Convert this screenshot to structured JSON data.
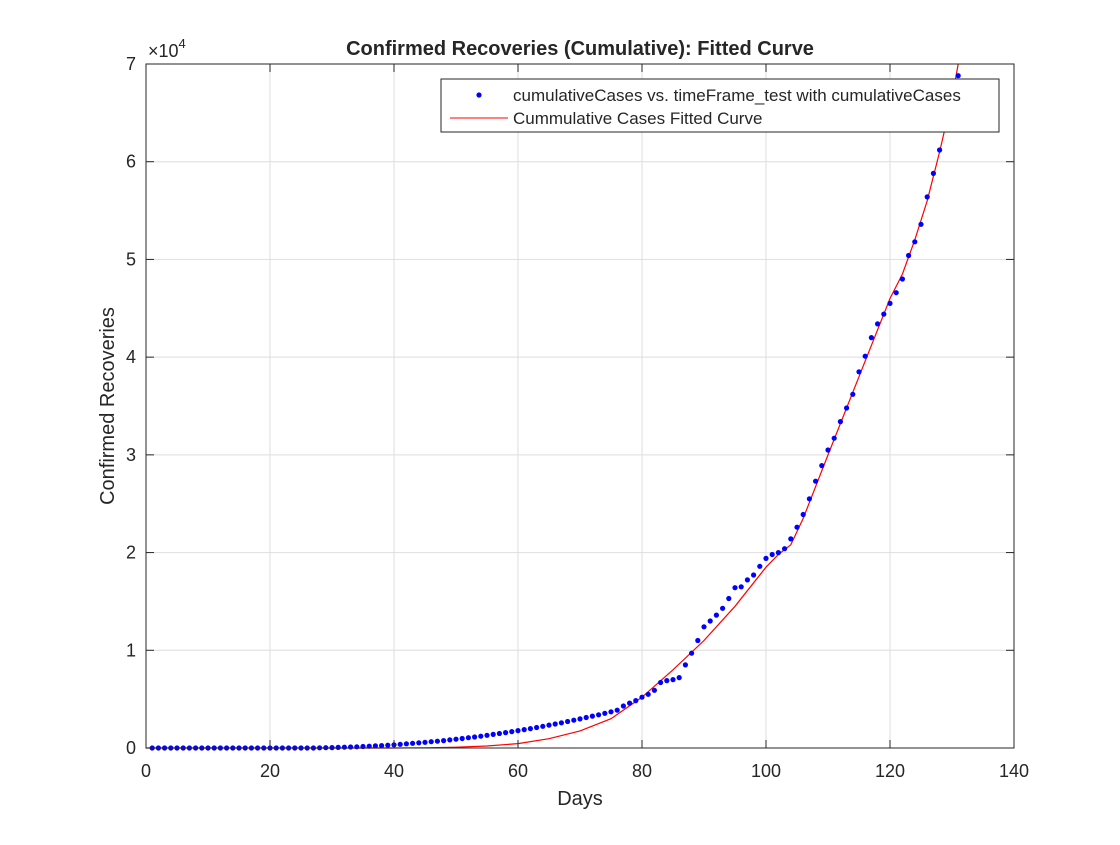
{
  "chart_data": {
    "type": "scatter",
    "title": "Confirmed Recoveries (Cumulative): Fitted Curve",
    "xlabel": "Days",
    "ylabel": "Confirmed Recoveries",
    "xlim": [
      0,
      140
    ],
    "ylim": [
      0,
      70000
    ],
    "x_ticks": [
      0,
      20,
      40,
      60,
      80,
      100,
      120,
      140
    ],
    "y_ticks": [
      0,
      1,
      2,
      3,
      4,
      5,
      6,
      7
    ],
    "y_multiplier": "×10",
    "y_multiplier_exp": "4",
    "grid": true,
    "legend_position": "top-right",
    "colors": {
      "points": "#0000ff",
      "fit": "#ff0000",
      "grid": "#dedede",
      "axes": "#262626"
    },
    "series": [
      {
        "name": "cumulativeCases vs. timeFrame_test with cumulativeCases",
        "kind": "points",
        "data": [
          [
            1,
            0
          ],
          [
            2,
            0
          ],
          [
            3,
            0
          ],
          [
            4,
            0
          ],
          [
            5,
            0
          ],
          [
            6,
            0
          ],
          [
            7,
            0
          ],
          [
            8,
            0
          ],
          [
            9,
            0
          ],
          [
            10,
            0
          ],
          [
            11,
            0
          ],
          [
            12,
            0
          ],
          [
            13,
            0
          ],
          [
            14,
            0
          ],
          [
            15,
            0
          ],
          [
            16,
            0
          ],
          [
            17,
            0
          ],
          [
            18,
            0
          ],
          [
            19,
            0
          ],
          [
            20,
            0
          ],
          [
            21,
            0
          ],
          [
            22,
            0
          ],
          [
            23,
            0
          ],
          [
            24,
            0
          ],
          [
            25,
            0
          ],
          [
            26,
            0
          ],
          [
            27,
            0
          ],
          [
            28,
            20
          ],
          [
            29,
            30
          ],
          [
            30,
            40
          ],
          [
            31,
            60
          ],
          [
            32,
            80
          ],
          [
            33,
            100
          ],
          [
            34,
            120
          ],
          [
            35,
            150
          ],
          [
            36,
            180
          ],
          [
            37,
            210
          ],
          [
            38,
            250
          ],
          [
            39,
            290
          ],
          [
            40,
            330
          ],
          [
            41,
            380
          ],
          [
            42,
            430
          ],
          [
            43,
            480
          ],
          [
            44,
            530
          ],
          [
            45,
            580
          ],
          [
            46,
            640
          ],
          [
            47,
            700
          ],
          [
            48,
            760
          ],
          [
            49,
            830
          ],
          [
            50,
            900
          ],
          [
            51,
            970
          ],
          [
            52,
            1050
          ],
          [
            53,
            1130
          ],
          [
            54,
            1210
          ],
          [
            55,
            1300
          ],
          [
            56,
            1390
          ],
          [
            57,
            1480
          ],
          [
            58,
            1580
          ],
          [
            59,
            1680
          ],
          [
            60,
            1780
          ],
          [
            61,
            1880
          ],
          [
            62,
            1990
          ],
          [
            63,
            2100
          ],
          [
            64,
            2220
          ],
          [
            65,
            2340
          ],
          [
            66,
            2460
          ],
          [
            67,
            2580
          ],
          [
            68,
            2710
          ],
          [
            69,
            2840
          ],
          [
            70,
            2980
          ],
          [
            71,
            3120
          ],
          [
            72,
            3260
          ],
          [
            73,
            3400
          ],
          [
            74,
            3550
          ],
          [
            75,
            3700
          ],
          [
            76,
            3870
          ],
          [
            77,
            4300
          ],
          [
            78,
            4600
          ],
          [
            79,
            4850
          ],
          [
            80,
            5200
          ],
          [
            81,
            5500
          ],
          [
            82,
            5900
          ],
          [
            83,
            6700
          ],
          [
            84,
            6900
          ],
          [
            85,
            7000
          ],
          [
            86,
            7200
          ],
          [
            87,
            8500
          ],
          [
            88,
            9700
          ],
          [
            89,
            11000
          ],
          [
            90,
            12400
          ],
          [
            91,
            13000
          ],
          [
            92,
            13600
          ],
          [
            93,
            14300
          ],
          [
            94,
            15300
          ],
          [
            95,
            16400
          ],
          [
            96,
            16500
          ],
          [
            97,
            17200
          ],
          [
            98,
            17700
          ],
          [
            99,
            18600
          ],
          [
            100,
            19400
          ],
          [
            101,
            19800
          ],
          [
            102,
            20000
          ],
          [
            103,
            20400
          ],
          [
            104,
            21400
          ],
          [
            105,
            22600
          ],
          [
            106,
            23900
          ],
          [
            107,
            25500
          ],
          [
            108,
            27300
          ],
          [
            109,
            28900
          ],
          [
            110,
            30500
          ],
          [
            111,
            31700
          ],
          [
            112,
            33400
          ],
          [
            113,
            34800
          ],
          [
            114,
            36200
          ],
          [
            115,
            38500
          ],
          [
            116,
            40100
          ],
          [
            117,
            42000
          ],
          [
            118,
            43400
          ],
          [
            119,
            44400
          ],
          [
            120,
            45500
          ],
          [
            121,
            46600
          ],
          [
            122,
            48000
          ],
          [
            123,
            50400
          ],
          [
            124,
            51800
          ],
          [
            125,
            53600
          ],
          [
            126,
            56400
          ],
          [
            127,
            58800
          ],
          [
            128,
            61200
          ],
          [
            129,
            64000
          ],
          [
            131,
            68800
          ]
        ]
      },
      {
        "name": "Cummulative Cases Fitted Curve",
        "kind": "line",
        "data": [
          [
            0,
            0
          ],
          [
            40,
            0
          ],
          [
            45,
            20
          ],
          [
            50,
            80
          ],
          [
            55,
            200
          ],
          [
            60,
            450
          ],
          [
            65,
            950
          ],
          [
            70,
            1750
          ],
          [
            75,
            3000
          ],
          [
            80,
            5200
          ],
          [
            85,
            8000
          ],
          [
            90,
            11000
          ],
          [
            95,
            14500
          ],
          [
            100,
            18500
          ],
          [
            102,
            19800
          ],
          [
            104,
            20800
          ],
          [
            106,
            23500
          ],
          [
            110,
            30000
          ],
          [
            115,
            38000
          ],
          [
            120,
            46000
          ],
          [
            122,
            48500
          ],
          [
            124,
            52000
          ],
          [
            126,
            56000
          ],
          [
            128,
            61000
          ],
          [
            130,
            66500
          ],
          [
            131,
            70000
          ]
        ]
      }
    ]
  }
}
